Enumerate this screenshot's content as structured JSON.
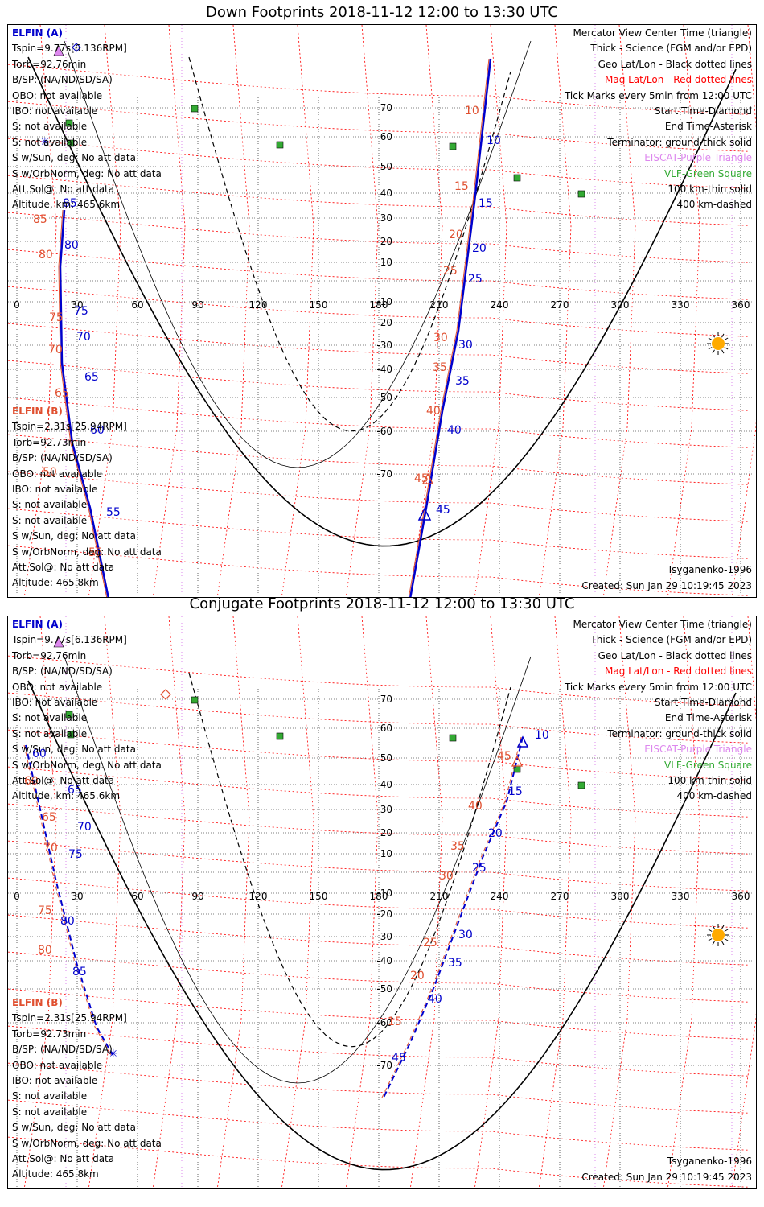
{
  "panels": [
    {
      "title": "Down Footprints 2018-11-12 12:00 to 13:30 UTC",
      "elfin_a": {
        "label": "ELFIN (A)",
        "tspin": "Tspin=9.77s[6.136RPM]",
        "torb": "Torb=92.76min",
        "bsp": "B/SP: (NA/ND/SD/SA)",
        "obo": "OBO: not available",
        "ibo": "IBO: not available",
        "s1": "S: not available",
        "s2": "S: not available",
        "s_sun": "S w/Sun, deg: No att data",
        "s_orb": "S w/OrbNorm, deg: No att data",
        "attsol": "Att.Sol@: No att data",
        "altitude": "Altitude, km: 465.6km"
      },
      "elfin_b": {
        "label": "ELFIN (B)",
        "tspin": "Tspin=2.31s[25.94RPM]",
        "torb": "Torb=92.73min",
        "bsp": "B/SP: (NA/ND/SD/SA)",
        "obo": "OBO: not available",
        "ibo": "IBO: not available",
        "s1": "S: not available",
        "s2": "S: not available",
        "s_sun": "S w/Sun, deg: No att data",
        "s_orb": "S w/OrbNorm, deg: No att data",
        "attsol": "Att.Sol@: No att data",
        "altitude": "Altitude: 465.8km"
      },
      "legend": {
        "l1": "Mercator View Center Time (triangle)",
        "l2": "Thick - Science (FGM and/or EPD)",
        "l3": "Geo Lat/Lon - Black dotted lines",
        "l4": "Mag Lat/Lon - Red dotted lines",
        "l5": "Tick Marks every 5min from 12:00 UTC",
        "l6": "Start Time-Diamond",
        "l7": "End Time-Asterisk",
        "l8": "Terminator: ground-thick solid",
        "l9": "EISCAT-Purple Triangle",
        "l10": "VLF-Green Square",
        "l11": "100 km-thin solid",
        "l12": "400 km-dashed"
      },
      "model": "Tsyganenko-1996",
      "created": "Created: Sun Jan 29 10:19:45 2023",
      "lon_labels": [
        "0",
        "30",
        "60",
        "90",
        "120",
        "150",
        "180",
        "210",
        "240",
        "270",
        "300",
        "330",
        "360"
      ],
      "lat_labels": [
        "70",
        "60",
        "50",
        "40",
        "30",
        "20",
        "10",
        "-10",
        "-20",
        "-30",
        "-40",
        "-50",
        "-60",
        "-70"
      ],
      "ticks_a": [
        "10",
        "15",
        "20",
        "25",
        "30",
        "35",
        "40",
        "45",
        "55",
        "60",
        "65",
        "70",
        "75",
        "80",
        "85"
      ],
      "ticks_b": [
        "10",
        "15",
        "20",
        "25",
        "30",
        "35",
        "40",
        "45",
        "50",
        "55",
        "65",
        "70",
        "75",
        "80",
        "85"
      ]
    },
    {
      "title": "Conjugate Footprints 2018-11-12 12:00 to 13:30 UTC",
      "elfin_a": {
        "label": "ELFIN (A)",
        "tspin": "Tspin=9.77s[6.136RPM]",
        "torb": "Torb=92.76min",
        "bsp": "B/SP: (NA/ND/SD/SA)",
        "obo": "OBO: not available",
        "ibo": "IBO: not available",
        "s1": "S: not available",
        "s2": "S: not available",
        "s_sun": "S w/Sun, deg: No att data",
        "s_orb": "S w/OrbNorm, deg: No att data",
        "attsol": "Att.Sol@: No att data",
        "altitude": "Altitude, km: 465.6km"
      },
      "elfin_b": {
        "label": "ELFIN (B)",
        "tspin": "Tspin=2.31s[25.94RPM]",
        "torb": "Torb=92.73min",
        "bsp": "B/SP: (NA/ND/SD/SA)",
        "obo": "OBO: not available",
        "ibo": "IBO: not available",
        "s1": "S: not available",
        "s2": "S: not available",
        "s_sun": "S w/Sun, deg: No att data",
        "s_orb": "S w/OrbNorm, deg: No att data",
        "attsol": "Att.Sol@: No att data",
        "altitude": "Altitude: 465.8km"
      },
      "legend": {
        "l1": "Mercator View Center Time (triangle)",
        "l2": "Thick - Science (FGM and/or EPD)",
        "l3": "Geo Lat/Lon - Black dotted lines",
        "l4": "Mag Lat/Lon - Red dotted lines",
        "l5": "Tick Marks every 5min from 12:00 UTC",
        "l6": "Start Time-Diamond",
        "l7": "End Time-Asterisk",
        "l8": "Terminator: ground-thick solid",
        "l9": "EISCAT-Purple Triangle",
        "l10": "VLF-Green Square",
        "l11": "100 km-thin solid",
        "l12": "400 km-dashed"
      },
      "model": "Tsyganenko-1996",
      "created": "Created: Sun Jan 29 10:19:45 2023",
      "lon_labels": [
        "0",
        "30",
        "60",
        "90",
        "120",
        "150",
        "180",
        "210",
        "240",
        "270",
        "300",
        "330",
        "360"
      ],
      "lat_labels": [
        "70",
        "60",
        "50",
        "40",
        "30",
        "20",
        "10",
        "-10",
        "-20",
        "-30",
        "-40",
        "-50",
        "-60",
        "-70"
      ],
      "ticks_a": [
        "10",
        "15",
        "20",
        "25",
        "30",
        "35",
        "40",
        "45",
        "60",
        "65",
        "70",
        "75",
        "80",
        "85"
      ],
      "ticks_b": [
        "15",
        "20",
        "25",
        "30",
        "35",
        "40",
        "45",
        "60",
        "65",
        "70",
        "75",
        "80",
        "85"
      ]
    }
  ],
  "colors": {
    "elfin_a": "#0000cc",
    "elfin_b": "#e05030",
    "mag_grid": "#ff0000",
    "geo_grid": "#000000",
    "eiscat": "#dd88ee",
    "vlf": "#33aa33",
    "sun": "#ffaa00"
  }
}
